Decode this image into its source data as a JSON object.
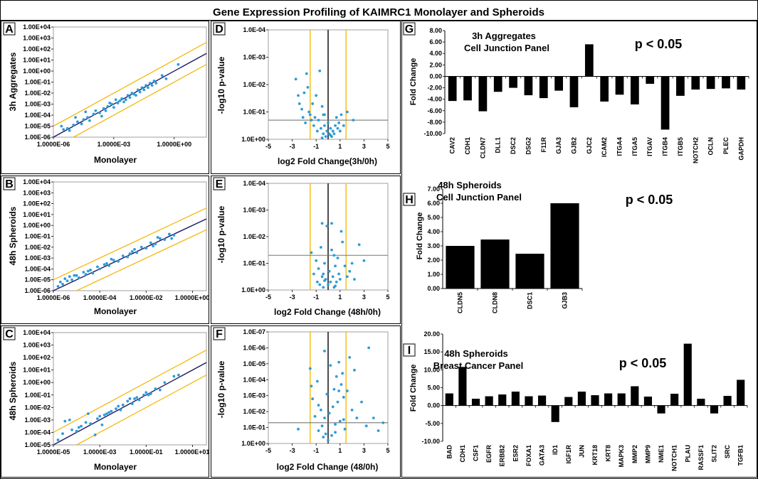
{
  "title": "Gene Expression Profiling of KAIMRC1 Monolayer and Spheroids",
  "chart_data": [
    {
      "id": "A",
      "panel_label": "A",
      "type": "scatter",
      "scale": "log",
      "xlabel": "Monolayer",
      "ylabel": "3h Aggregates",
      "x_ticks": [
        "1.0000E-06",
        "1.0000E-03",
        "1.0000E+00"
      ],
      "x_exp_range": [
        -6,
        1.6
      ],
      "y_ticks": [
        "1.00E-06",
        "1.00E-05",
        "1.00E-04",
        "1.00E-03",
        "1.00E-02",
        "1.00E-01",
        "1.00E+00",
        "1.00E+01",
        "1.00E+02",
        "1.00E+03",
        "1.00E+04"
      ],
      "y_exp_range": [
        -6,
        4
      ],
      "fold_lines": [
        1,
        -1
      ],
      "points_log10": [
        [
          -5.5,
          -5.3
        ],
        [
          -5.3,
          -5.2
        ],
        [
          -5.2,
          -5.4
        ],
        [
          -5,
          -4.9
        ],
        [
          -4.8,
          -4.6
        ],
        [
          -4.6,
          -4.8
        ],
        [
          -4.5,
          -4.4
        ],
        [
          -4.3,
          -4.2
        ],
        [
          -4.2,
          -4.5
        ],
        [
          -4,
          -3.9
        ],
        [
          -3.9,
          -3.6
        ],
        [
          -3.7,
          -3.8
        ],
        [
          -3.5,
          -3.4
        ],
        [
          -3.4,
          -3.6
        ],
        [
          -3.3,
          -3.2
        ],
        [
          -3.1,
          -3
        ],
        [
          -3,
          -3.3
        ],
        [
          -2.9,
          -2.6
        ],
        [
          -2.8,
          -2.9
        ],
        [
          -2.7,
          -2.7
        ],
        [
          -2.6,
          -2.5
        ],
        [
          -2.5,
          -2.8
        ],
        [
          -2.3,
          -2.2
        ],
        [
          -2.2,
          -2.4
        ],
        [
          -2.1,
          -2
        ],
        [
          -2,
          -2.1
        ],
        [
          -1.8,
          -1.7
        ],
        [
          -1.7,
          -1.9
        ],
        [
          -1.6,
          -1.5
        ],
        [
          -1.5,
          -1.7
        ],
        [
          -1.4,
          -1.3
        ],
        [
          -1.3,
          -1.5
        ],
        [
          -1.2,
          -1.1
        ],
        [
          -1.1,
          -1.3
        ],
        [
          -1,
          -0.9
        ],
        [
          -0.9,
          -1.1
        ],
        [
          -0.6,
          -0.4
        ],
        [
          -0.4,
          -0.7
        ],
        [
          0.2,
          0.6
        ],
        [
          -4.4,
          -3.7
        ],
        [
          -3.6,
          -4.1
        ],
        [
          -2.4,
          -2.6
        ],
        [
          -1.9,
          -2.2
        ],
        [
          -3.2,
          -2.9
        ],
        [
          -5.6,
          -5
        ],
        [
          -4.9,
          -4.2
        ]
      ]
    },
    {
      "id": "B",
      "panel_label": "B",
      "type": "scatter",
      "scale": "log",
      "xlabel": "Monolayer",
      "ylabel": "48h Spheroids",
      "x_ticks": [
        "1.0000E-06",
        "1.0000E-04",
        "1.0000E-02",
        "1.0000E+00"
      ],
      "x_exp_range": [
        -6,
        0.6
      ],
      "y_ticks": [
        "1.00E-06",
        "1.00E-05",
        "1.00E-04",
        "1.00E-03",
        "1.00E-02",
        "1.00E-01",
        "1.00E+00",
        "1.00E+01",
        "1.00E+02",
        "1.00E+03",
        "1.00E+04"
      ],
      "y_exp_range": [
        -6,
        4
      ],
      "fold_lines": [
        1,
        -1
      ],
      "points_log10": [
        [
          -5.8,
          -5.6
        ],
        [
          -5.7,
          -5.2
        ],
        [
          -5.6,
          -5.4
        ],
        [
          -5.5,
          -4.9
        ],
        [
          -5.4,
          -5.1
        ],
        [
          -5.3,
          -4.7
        ],
        [
          -5.2,
          -5
        ],
        [
          -5,
          -4.6
        ],
        [
          -4.9,
          -4.8
        ],
        [
          -4.7,
          -4.3
        ],
        [
          -4.6,
          -4.5
        ],
        [
          -4.4,
          -4.1
        ],
        [
          -4.3,
          -4.4
        ],
        [
          -4.1,
          -3.8
        ],
        [
          -4,
          -4
        ],
        [
          -3.8,
          -3.6
        ],
        [
          -3.6,
          -3.7
        ],
        [
          -3.4,
          -3.2
        ],
        [
          -3.2,
          -3.3
        ],
        [
          -3,
          -2.8
        ],
        [
          -2.8,
          -2.9
        ],
        [
          -2.6,
          -2.4
        ],
        [
          -2.4,
          -2.5
        ],
        [
          -2.2,
          -2
        ],
        [
          -2,
          -2.1
        ],
        [
          -1.8,
          -1.6
        ],
        [
          -1.6,
          -1.7
        ],
        [
          -1.4,
          -1.2
        ],
        [
          -1.2,
          -1.3
        ],
        [
          -1,
          -0.8
        ],
        [
          -0.8,
          -0.9
        ],
        [
          -1.5,
          -1.1
        ],
        [
          -2.5,
          -2.2
        ],
        [
          -3.5,
          -3.1
        ],
        [
          -4.5,
          -4.2
        ],
        [
          -5.1,
          -4.6
        ],
        [
          -0.9,
          -1.2
        ],
        [
          -1.7,
          -1.9
        ],
        [
          -2.7,
          -2.6
        ],
        [
          -3.7,
          -3.5
        ]
      ]
    },
    {
      "id": "C",
      "panel_label": "C",
      "type": "scatter",
      "scale": "log",
      "xlabel": "Monolayer",
      "ylabel": "48h Spheroids",
      "x_ticks": [
        "1.0000E-05",
        "1.0000E-03",
        "1.0000E-01",
        "1.0000E+01"
      ],
      "x_exp_range": [
        -5,
        1.6
      ],
      "y_ticks": [
        "1.00E-05",
        "1.00E-04",
        "1.00E-03",
        "1.00E-02",
        "1.00E-01",
        "1.00E+00",
        "1.00E+01",
        "1.00E+02",
        "1.00E+03",
        "1.00E+04"
      ],
      "y_exp_range": [
        -5,
        4
      ],
      "fold_lines": [
        1,
        -1
      ],
      "points_log10": [
        [
          -4.8,
          -4.6
        ],
        [
          -4.6,
          -4.1
        ],
        [
          -4.5,
          -3.1
        ],
        [
          -4.3,
          -3
        ],
        [
          -4.2,
          -3.8
        ],
        [
          -4,
          -3.9
        ],
        [
          -3.8,
          -3.5
        ],
        [
          -3.6,
          -3.2
        ],
        [
          -3.4,
          -3.3
        ],
        [
          -3.2,
          -4.2
        ],
        [
          -3.1,
          -2.9
        ],
        [
          -3,
          -2.7
        ],
        [
          -2.8,
          -2.6
        ],
        [
          -2.6,
          -2.4
        ],
        [
          -2.5,
          -2.3
        ],
        [
          -2.3,
          -2.1
        ],
        [
          -2.1,
          -2.2
        ],
        [
          -2,
          -1.8
        ],
        [
          -1.8,
          -1.5
        ],
        [
          -1.6,
          -1.7
        ],
        [
          -1.5,
          -1.3
        ],
        [
          -1.3,
          -1.4
        ],
        [
          -1.1,
          -1
        ],
        [
          -1,
          -0.8
        ],
        [
          -0.8,
          -0.9
        ],
        [
          -0.6,
          -0.5
        ],
        [
          -0.4,
          -0.6
        ],
        [
          -0.2,
          0
        ],
        [
          0.2,
          0.5
        ],
        [
          0.4,
          0.6
        ],
        [
          -2.9,
          -3.4
        ],
        [
          -3.5,
          -2.5
        ],
        [
          -2.2,
          -1.9
        ],
        [
          -1.4,
          -1.2
        ],
        [
          -0.9,
          -1
        ],
        [
          -3.9,
          -3.6
        ],
        [
          -2.7,
          -2.5
        ],
        [
          -1.7,
          -1.3
        ]
      ]
    },
    {
      "id": "D",
      "panel_label": "D",
      "type": "scatter",
      "scale": "volcano",
      "xlabel": "log2 Fold Change(3h/0h)",
      "ylabel": "-log10 p-value",
      "x_ticks": [
        "-5",
        "-3",
        "-1",
        "1",
        "3",
        "5"
      ],
      "x_range": [
        -5,
        5
      ],
      "y_ticks": [
        "1.0E+00",
        "1.0E-01",
        "1.0E-02",
        "1.0E-03",
        "1.0E-04"
      ],
      "y_range": [
        0,
        4
      ],
      "vlines": [
        -1.5,
        0,
        1.5
      ],
      "hline": 0.7,
      "points": [
        [
          -2.7,
          2.2
        ],
        [
          -2.4,
          1.3
        ],
        [
          -2.2,
          1.1
        ],
        [
          -2.1,
          0.8
        ],
        [
          -2,
          1.7
        ],
        [
          -1.9,
          0.6
        ],
        [
          -1.7,
          1.9
        ],
        [
          -1.6,
          1
        ],
        [
          -1.5,
          0.9
        ],
        [
          -1.4,
          0.7
        ],
        [
          -1.3,
          1.3
        ],
        [
          -1.2,
          0.5
        ],
        [
          -1.1,
          0.8
        ],
        [
          -1,
          1.6
        ],
        [
          -0.9,
          0.3
        ],
        [
          -0.8,
          0.7
        ],
        [
          -0.7,
          2.5
        ],
        [
          -0.6,
          0.4
        ],
        [
          -0.5,
          1.2
        ],
        [
          -0.4,
          0.2
        ],
        [
          -0.3,
          0.9
        ],
        [
          -0.2,
          0.1
        ],
        [
          -0.1,
          0.3
        ],
        [
          0,
          0.6
        ],
        [
          0.1,
          0.2
        ],
        [
          0.2,
          0.4
        ],
        [
          0.3,
          0.1
        ],
        [
          0.4,
          0.3
        ],
        [
          0.5,
          0.2
        ],
        [
          0.6,
          0.5
        ],
        [
          0.7,
          0.8
        ],
        [
          0.8,
          0.4
        ],
        [
          0.9,
          0.6
        ],
        [
          1,
          0.3
        ],
        [
          1.1,
          0.9
        ],
        [
          1.3,
          0.5
        ],
        [
          1.6,
          1
        ],
        [
          2.1,
          0.7
        ],
        [
          -0.5,
          0.05
        ],
        [
          -0.3,
          0.5
        ],
        [
          -1.8,
          2.4
        ],
        [
          -2.5,
          1.6
        ],
        [
          -0.4,
          0.9
        ],
        [
          0.2,
          0.15
        ]
      ]
    },
    {
      "id": "E",
      "panel_label": "E",
      "type": "scatter",
      "scale": "volcano",
      "xlabel": "log2 Fold Change (48h/0h)",
      "ylabel": "-log10 p-value",
      "x_ticks": [
        "-5",
        "-3",
        "-1",
        "1",
        "3",
        "5"
      ],
      "x_range": [
        -5,
        5
      ],
      "y_ticks": [
        "1.0E+00",
        "1.0E-01",
        "1.0E-02",
        "1.0E-03",
        "1.0E-04"
      ],
      "y_range": [
        0,
        4
      ],
      "vlines": [
        -1.5,
        0,
        1.5
      ],
      "hline": 1.3,
      "points": [
        [
          -1.4,
          1.4
        ],
        [
          -1.2,
          0.6
        ],
        [
          -1,
          1.1
        ],
        [
          -0.9,
          0.3
        ],
        [
          -0.8,
          0.8
        ],
        [
          -0.7,
          0.2
        ],
        [
          -0.6,
          1.6
        ],
        [
          -0.5,
          0.5
        ],
        [
          -0.4,
          0.1
        ],
        [
          -0.3,
          1
        ],
        [
          -0.2,
          0.4
        ],
        [
          -0.1,
          2.4
        ],
        [
          0,
          0.2
        ],
        [
          0.1,
          0.7
        ],
        [
          0.2,
          0.3
        ],
        [
          0.3,
          1.5
        ],
        [
          0.4,
          0.5
        ],
        [
          0.5,
          0.1
        ],
        [
          0.6,
          0.9
        ],
        [
          0.7,
          0.3
        ],
        [
          0.8,
          1.2
        ],
        [
          0.9,
          0.6
        ],
        [
          1,
          0.4
        ],
        [
          1.2,
          1.8
        ],
        [
          1.4,
          0.9
        ],
        [
          1.6,
          0.5
        ],
        [
          1.8,
          0.7
        ],
        [
          2,
          1
        ],
        [
          2.2,
          0.4
        ],
        [
          2.6,
          1.7
        ],
        [
          3,
          1.1
        ],
        [
          0.3,
          2.5
        ],
        [
          -0.5,
          2.5
        ],
        [
          -0.4,
          0.6
        ],
        [
          0.6,
          0.15
        ],
        [
          1.1,
          2.2
        ],
        [
          0.5,
          1.3
        ],
        [
          -0.3,
          0.35
        ]
      ]
    },
    {
      "id": "F",
      "panel_label": "F",
      "type": "scatter",
      "scale": "volcano",
      "xlabel": "log2 Fold Change (48/0h)",
      "ylabel": "-log10 p-value",
      "x_ticks": [
        "-5",
        "-3",
        "-1",
        "1",
        "3",
        "5"
      ],
      "x_range": [
        -5,
        5
      ],
      "y_ticks": [
        "1.0E+00",
        "1.0E-01",
        "1.0E-02",
        "1.0E-03",
        "1.0E-04",
        "1.0E-05",
        "1.0E-06",
        "1.0E-07"
      ],
      "y_range": [
        0,
        7
      ],
      "vlines": [
        -1.5,
        0,
        1.5
      ],
      "hline": 1.3,
      "points": [
        [
          -2.5,
          0.9
        ],
        [
          -1.5,
          4.7
        ],
        [
          -1.4,
          3.6
        ],
        [
          -1.3,
          2.8
        ],
        [
          -1.1,
          1.7
        ],
        [
          -0.9,
          3.9
        ],
        [
          -0.8,
          0.8
        ],
        [
          -0.6,
          2.1
        ],
        [
          -0.5,
          1.1
        ],
        [
          -0.4,
          0.4
        ],
        [
          -0.3,
          1.6
        ],
        [
          -0.2,
          0.6
        ],
        [
          -0.1,
          3.1
        ],
        [
          0,
          0.2
        ],
        [
          0.1,
          1.9
        ],
        [
          0.2,
          4.9
        ],
        [
          0.3,
          0.5
        ],
        [
          0.4,
          2.3
        ],
        [
          0.5,
          3.4
        ],
        [
          0.6,
          1.2
        ],
        [
          0.7,
          4.2
        ],
        [
          0.8,
          2.6
        ],
        [
          0.9,
          5.1
        ],
        [
          1,
          1.4
        ],
        [
          1.1,
          3.7
        ],
        [
          1.2,
          4.4
        ],
        [
          1.3,
          2.9
        ],
        [
          1.4,
          0.9
        ],
        [
          1.6,
          3.3
        ],
        [
          1.8,
          5.4
        ],
        [
          2,
          2.1
        ],
        [
          2.2,
          4.6
        ],
        [
          2.4,
          1.6
        ],
        [
          2.8,
          2.6
        ],
        [
          3.2,
          1.1
        ],
        [
          3.4,
          6
        ],
        [
          3.8,
          1.6
        ],
        [
          4.2,
          0.8
        ],
        [
          4.6,
          1.3
        ],
        [
          -0.8,
          2.4
        ],
        [
          0.6,
          0.7
        ],
        [
          1.3,
          1.5
        ],
        [
          -0.3,
          5.8
        ],
        [
          0.9,
          3.3
        ]
      ]
    },
    {
      "id": "G",
      "panel_label": "G",
      "type": "bar",
      "title": "3h Aggregates",
      "subtitle": "Cell Junction Panel",
      "annotation": "p < 0.05",
      "ylabel": "Fold Change",
      "ylim": [
        -10,
        8
      ],
      "ytick_step": 2,
      "ytick_decimals": 2,
      "categories": [
        "CAV2",
        "CDH1",
        "CLDN7",
        "DLL1",
        "DSC2",
        "DSG2",
        "F11R",
        "GJA3",
        "GJB2",
        "GJC2",
        "ICAM2",
        "ITGA4",
        "ITGA5",
        "ITGAV",
        "ITGB4",
        "ITGB5",
        "NOTCH2",
        "OCLN",
        "PLEC",
        "GAPDH"
      ],
      "values": [
        -4.3,
        -4.2,
        -6.1,
        -2.7,
        -2,
        -3.3,
        -3.8,
        -2.5,
        -5.4,
        5.6,
        -4.4,
        -3.2,
        -4.9,
        -1.3,
        -9.3,
        -3.4,
        -2.3,
        -2.2,
        -2.1,
        -2.3
      ]
    },
    {
      "id": "H",
      "panel_label": "H",
      "type": "bar",
      "title": "48h Spheroids",
      "subtitle": "Cell Junction Panel",
      "annotation": "p < 0.05",
      "ylabel": "Fold Change",
      "ylim": [
        0,
        7
      ],
      "ytick_step": 1,
      "ytick_decimals": 2,
      "categories": [
        "CLDN5",
        "CLDN8",
        "DSC1",
        "GJB3"
      ],
      "values": [
        3,
        3.45,
        2.45,
        6
      ]
    },
    {
      "id": "I",
      "panel_label": "I",
      "type": "bar",
      "title": "48h Spheroids",
      "subtitle": "Breast Cancer Panel",
      "annotation": "p < 0.05",
      "ylabel": "Fold Change",
      "ylim": [
        -10,
        20
      ],
      "ytick_step": 5,
      "ytick_decimals": 2,
      "categories": [
        "BAD",
        "CDH1",
        "CSF1",
        "EGFR",
        "ERBB2",
        "ESR2",
        "FOXA1",
        "GATA3",
        "ID1",
        "IGF1R",
        "JUN",
        "KRT18",
        "KRT8",
        "MAPK3",
        "MMP2",
        "MMP9",
        "NME1",
        "NOTCH1",
        "PLAU",
        "RASSF1",
        "SLIT2",
        "SRC",
        "TGFB1"
      ],
      "values": [
        3.4,
        10.8,
        1.9,
        2.6,
        3.1,
        3.9,
        2.6,
        2.8,
        -4.6,
        2.4,
        3.9,
        2.9,
        3.4,
        3.4,
        5.4,
        2.5,
        -2.2,
        3.3,
        17.3,
        1.9,
        -2.2,
        2.7,
        7.2
      ]
    }
  ]
}
